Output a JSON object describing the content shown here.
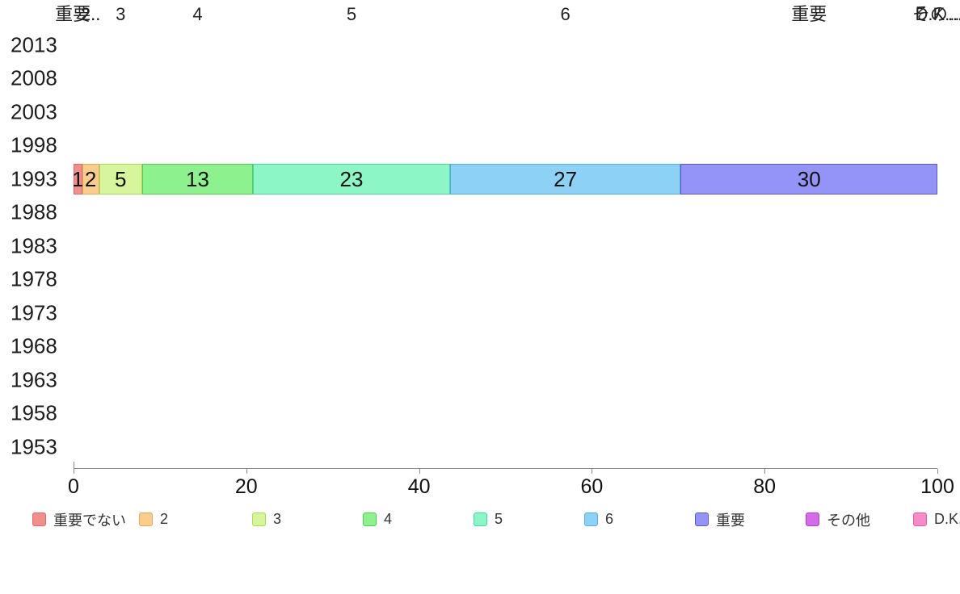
{
  "chart_data": {
    "type": "bar",
    "orientation": "horizontal",
    "stacked": true,
    "title": "",
    "xlabel": "",
    "ylabel": "",
    "categories": [
      "2013",
      "2008",
      "2003",
      "1998",
      "1993",
      "1988",
      "1983",
      "1978",
      "1973",
      "1968",
      "1963",
      "1958",
      "1953"
    ],
    "data_category": "1993",
    "series": [
      {
        "name": "重要でない",
        "top_label": "重要..",
        "value": 1,
        "bar_label": "1",
        "fill": "#F28F8D",
        "border": "#D96C6A"
      },
      {
        "name": "2",
        "top_label": "2..",
        "value": 2,
        "bar_label": "2",
        "fill": "#FACD8C",
        "border": "#E0AC60"
      },
      {
        "name": "3",
        "top_label": "3",
        "value": 5,
        "bar_label": "5",
        "fill": "#D7F59B",
        "border": "#A9D960"
      },
      {
        "name": "4",
        "top_label": "4",
        "value": 13,
        "bar_label": "13",
        "fill": "#8DF18D",
        "border": "#55CC55"
      },
      {
        "name": "5",
        "top_label": "5",
        "value": 23,
        "bar_label": "23",
        "fill": "#8DF6C6",
        "border": "#4ED4A2"
      },
      {
        "name": "6",
        "top_label": "6",
        "value": 27,
        "bar_label": "27",
        "fill": "#8DD1F6",
        "border": "#58A9DD"
      },
      {
        "name": "重要",
        "top_label": "重要",
        "value": 30,
        "bar_label": "30",
        "fill": "#9393F8",
        "border": "#5B5BBF"
      },
      {
        "name": "その他",
        "top_label": "その...",
        "value": 0,
        "bar_label": "",
        "fill": "#D66BEA",
        "border": "#A845C7"
      },
      {
        "name": "D.K.",
        "top_label": "D.K...",
        "value": 0,
        "bar_label": "",
        "fill": "#F78BC9",
        "border": "#DC5FA6"
      }
    ],
    "xlim": [
      0,
      100
    ],
    "x_ticks": [
      "0",
      "20",
      "40",
      "60",
      "80",
      "100"
    ],
    "grid": false,
    "legend_position": "bottom",
    "background_color": "#ffffff",
    "text_color": "#1c1c1c",
    "axis_color": "#8a8a8a"
  }
}
